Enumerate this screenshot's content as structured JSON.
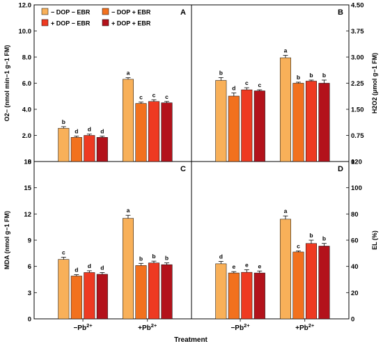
{
  "x_title": "Treatment",
  "categories": [
    "−Pb2+",
    "+Pb2+"
  ],
  "legend": [
    {
      "label": "− DOP − EBR",
      "color": "#f8b059"
    },
    {
      "label": "− DOP + EBR",
      "color": "#f2711e"
    },
    {
      "label": "+ DOP − EBR",
      "color": "#ee3a22"
    },
    {
      "label": "+ DOP + EBR",
      "color": "#b3121b"
    }
  ],
  "chart_data": [
    {
      "type": "bar",
      "panel": "A",
      "categories": [
        "−Pb2+",
        "+Pb2+"
      ],
      "ylabel": "O2− (nmol min−1 g−1 FM)",
      "ylim": [
        0,
        12
      ],
      "yticks": [
        "0",
        "2.0",
        "4.0",
        "6.0",
        "8.0",
        "10.0",
        "12.0"
      ],
      "series": [
        {
          "name": "− DOP − EBR",
          "values": [
            2.55,
            6.3
          ],
          "errors": [
            0.12,
            0.12
          ],
          "letters": [
            "b",
            "a"
          ]
        },
        {
          "name": "− DOP + EBR",
          "values": [
            1.85,
            4.45
          ],
          "errors": [
            0.1,
            0.1
          ],
          "letters": [
            "d",
            "c"
          ]
        },
        {
          "name": "+ DOP − EBR",
          "values": [
            2.0,
            4.6
          ],
          "errors": [
            0.1,
            0.13
          ],
          "letters": [
            "d",
            "c"
          ]
        },
        {
          "name": "+ DOP + EBR",
          "values": [
            1.85,
            4.5
          ],
          "errors": [
            0.1,
            0.1
          ],
          "letters": [
            "d",
            "c"
          ]
        }
      ]
    },
    {
      "type": "bar",
      "panel": "B",
      "categories": [
        "−Pb2+",
        "+Pb2+"
      ],
      "ylabel": "H2O2 (μmol g−1 FM)",
      "ylim": [
        0,
        4.5
      ],
      "yticks": [
        "0",
        "0.75",
        "1.50",
        "2.25",
        "3.00",
        "3.75",
        "4.50"
      ],
      "series": [
        {
          "name": "− DOP − EBR",
          "values": [
            2.33,
            2.98
          ],
          "errors": [
            0.08,
            0.07
          ],
          "letters": [
            "b",
            "a"
          ]
        },
        {
          "name": "− DOP + EBR",
          "values": [
            1.88,
            2.25
          ],
          "errors": [
            0.09,
            0.03
          ],
          "letters": [
            "d",
            "b"
          ]
        },
        {
          "name": "+ DOP − EBR",
          "values": [
            2.06,
            2.31
          ],
          "errors": [
            0.06,
            0.03
          ],
          "letters": [
            "c",
            "b"
          ]
        },
        {
          "name": "+ DOP + EBR",
          "values": [
            2.03,
            2.25
          ],
          "errors": [
            0.03,
            0.09
          ],
          "letters": [
            "c",
            "b"
          ]
        }
      ]
    },
    {
      "type": "bar",
      "panel": "C",
      "categories": [
        "−Pb2+",
        "+Pb2+"
      ],
      "ylabel": "MDA (nmol g−1 FM)",
      "ylim": [
        0,
        18
      ],
      "yticks": [
        "0",
        "3",
        "6",
        "9",
        "12",
        "15",
        "18"
      ],
      "series": [
        {
          "name": "− DOP − EBR",
          "values": [
            6.8,
            11.5
          ],
          "errors": [
            0.25,
            0.35
          ],
          "letters": [
            "c",
            "a"
          ]
        },
        {
          "name": "− DOP + EBR",
          "values": [
            4.9,
            6.1
          ],
          "errors": [
            0.15,
            0.25
          ],
          "letters": [
            "d",
            "b"
          ]
        },
        {
          "name": "+ DOP − EBR",
          "values": [
            5.3,
            6.4
          ],
          "errors": [
            0.2,
            0.2
          ],
          "letters": [
            "d",
            "b"
          ]
        },
        {
          "name": "+ DOP + EBR",
          "values": [
            5.1,
            6.2
          ],
          "errors": [
            0.2,
            0.2
          ],
          "letters": [
            "d",
            "b"
          ]
        }
      ]
    },
    {
      "type": "bar",
      "panel": "D",
      "categories": [
        "−Pb2+",
        "+Pb2+"
      ],
      "ylabel": "EL (%)",
      "ylim": [
        0,
        120
      ],
      "yticks": [
        "0",
        "20",
        "40",
        "60",
        "80",
        "100",
        "120"
      ],
      "series": [
        {
          "name": "− DOP − EBR",
          "values": [
            42,
            76
          ],
          "errors": [
            1.8,
            2.5
          ],
          "letters": [
            "d",
            "a"
          ]
        },
        {
          "name": "− DOP + EBR",
          "values": [
            35,
            51
          ],
          "errors": [
            1.0,
            0.8
          ],
          "letters": [
            "e",
            "c"
          ]
        },
        {
          "name": "+ DOP − EBR",
          "values": [
            35.5,
            57.5
          ],
          "errors": [
            2.0,
            2.5
          ],
          "letters": [
            "e",
            "b"
          ]
        },
        {
          "name": "+ DOP + EBR",
          "values": [
            35,
            55.5
          ],
          "errors": [
            1.5,
            2.0
          ],
          "letters": [
            "e",
            "b"
          ]
        }
      ]
    }
  ]
}
